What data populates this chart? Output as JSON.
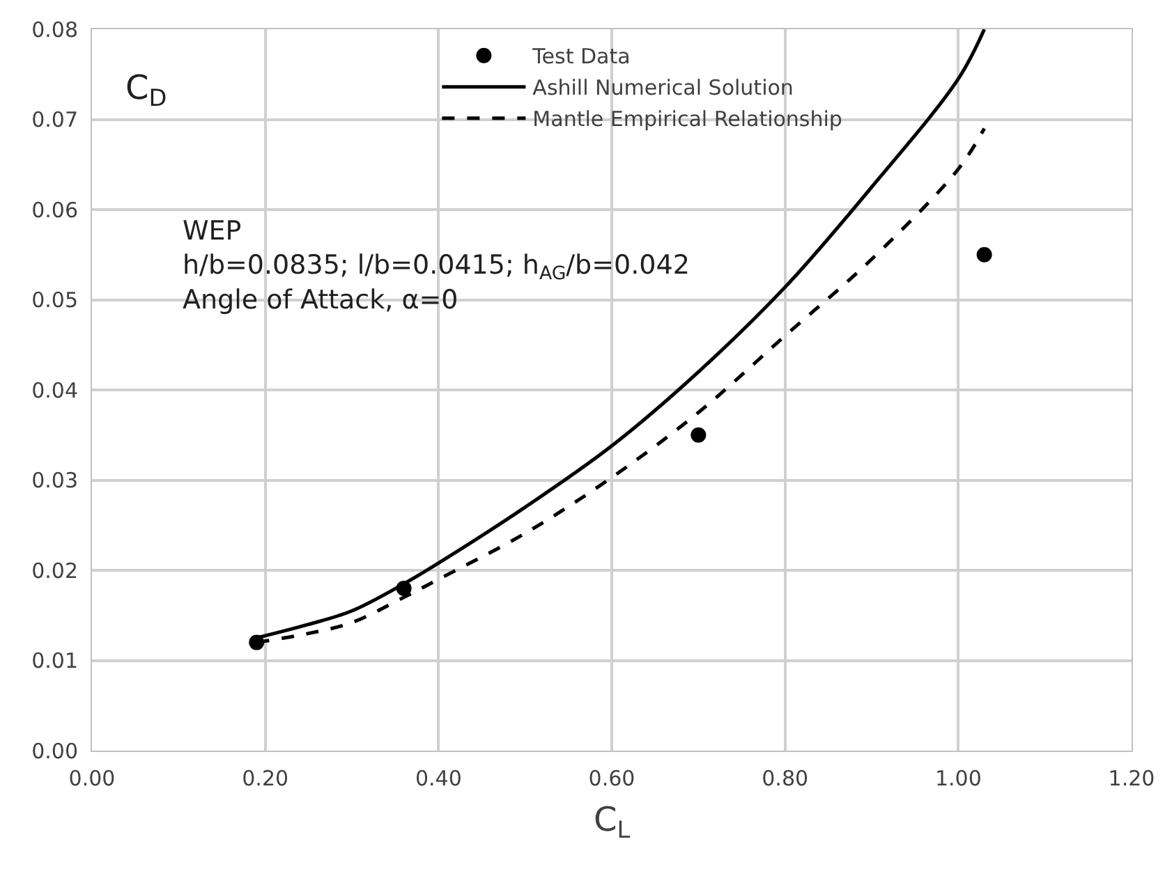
{
  "chart_data": {
    "type": "line",
    "xlabel": "C$_{L}$",
    "ylabel": "C$_{D}$",
    "annotations": [
      "WEP",
      "h/b=0.0835; l/b=0.0415; h$_{AG}$/b=0.042",
      "Angle of Attack, α=0"
    ],
    "series": [
      {
        "name": "Test Data",
        "type": "scatter",
        "marker": "circle",
        "color": "#000000",
        "x": [
          0.19,
          0.36,
          0.7,
          1.03
        ],
        "values": [
          0.012,
          0.018,
          0.035,
          0.055
        ]
      },
      {
        "name": "Ashill Numerical Solution",
        "line_style": "solid",
        "color": "#000000",
        "x": [
          0.19,
          0.25,
          0.3,
          0.36,
          0.4,
          0.5,
          0.6,
          0.7,
          0.8,
          0.9,
          1.0,
          1.03
        ],
        "values": [
          0.0125,
          0.014,
          0.0155,
          0.0185,
          0.0208,
          0.027,
          0.0338,
          0.042,
          0.0514,
          0.0625,
          0.0745,
          0.08
        ]
      },
      {
        "name": "Mantle Empirical Relationship",
        "line_style": "dashed",
        "color": "#000000",
        "x": [
          0.19,
          0.25,
          0.3,
          0.36,
          0.4,
          0.5,
          0.6,
          0.7,
          0.8,
          0.9,
          1.0,
          1.03
        ],
        "values": [
          0.012,
          0.013,
          0.0142,
          0.017,
          0.019,
          0.0241,
          0.0303,
          0.0375,
          0.046,
          0.0545,
          0.0645,
          0.069
        ]
      }
    ],
    "xlim": [
      0,
      1.2
    ],
    "xticks": [
      {
        "value": 0,
        "label": "0.00"
      },
      {
        "value": 0.2,
        "label": "0.20"
      },
      {
        "value": 0.4,
        "label": "0.40"
      },
      {
        "value": 0.6,
        "label": "0.60"
      },
      {
        "value": 0.8,
        "label": "0.80"
      },
      {
        "value": 1.0,
        "label": "1.00"
      },
      {
        "value": 1.2,
        "label": "1.20"
      }
    ],
    "ylim": [
      0,
      0.08
    ],
    "yticks": [
      {
        "value": 0,
        "label": "0.00"
      },
      {
        "value": 0.01,
        "label": "0.01"
      },
      {
        "value": 0.02,
        "label": "0.02"
      },
      {
        "value": 0.03,
        "label": "0.03"
      },
      {
        "value": 0.04,
        "label": "0.04"
      },
      {
        "value": 0.05,
        "label": "0.05"
      },
      {
        "value": 0.06,
        "label": "0.06"
      },
      {
        "value": 0.07,
        "label": "0.07"
      },
      {
        "value": 0.08,
        "label": "0.08"
      }
    ],
    "grid": true,
    "legend": "top"
  }
}
